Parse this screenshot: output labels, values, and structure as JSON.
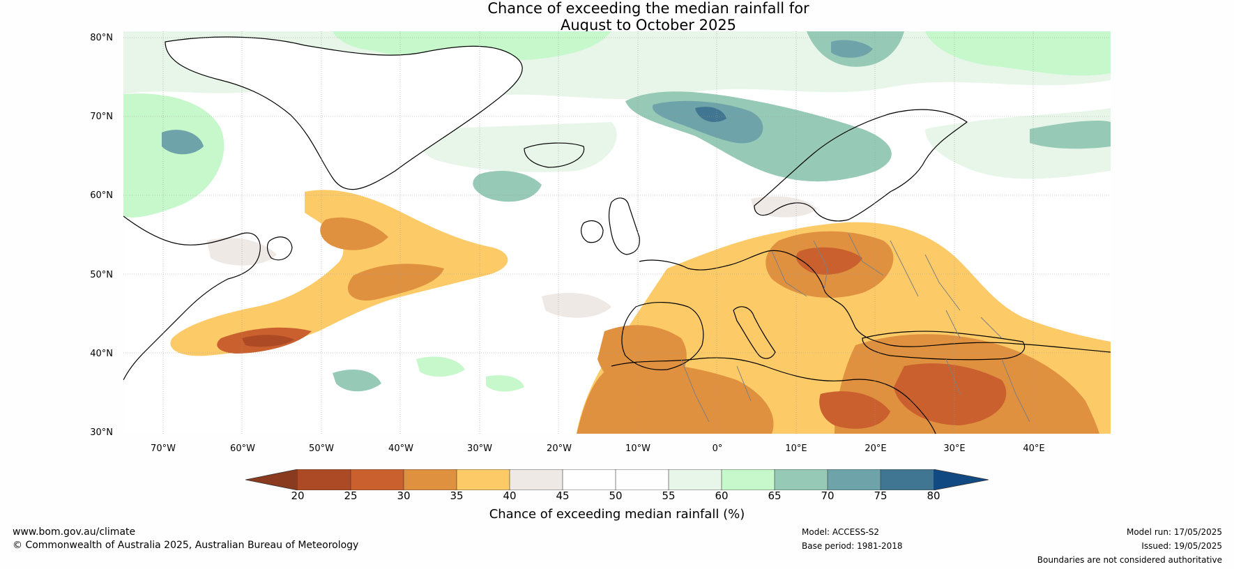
{
  "title": {
    "line1": "Chance of exceeding the median rainfall for",
    "line2": "August to October 2025"
  },
  "map": {
    "lat_labels": [
      "80°N",
      "70°N",
      "60°N",
      "50°N",
      "40°N",
      "30°N"
    ],
    "lon_labels": [
      "70°W",
      "60°W",
      "50°W",
      "40°W",
      "30°W",
      "20°W",
      "10°W",
      "0°",
      "10°E",
      "20°E",
      "30°E",
      "40°E"
    ],
    "colors": {
      "dry_extreme": "#8a3a1e",
      "lt25": "#ad4a26",
      "lt30": "#c9602e",
      "lt35": "#e0913f",
      "lt40": "#fdca68",
      "lt45": "#efe9e6",
      "lt50": "#ffffff",
      "lt55": "#fdfefd",
      "lt60": "#e8f6e9",
      "lt65": "#c7f8cb",
      "lt70": "#97cab6",
      "lt75": "#6ea3a9",
      "lt80": "#417692",
      "wet_extreme": "#114a83",
      "coast": "#000000",
      "borders": "#7f7f7f"
    }
  },
  "colorbar": {
    "ticks": [
      "20",
      "25",
      "30",
      "35",
      "40",
      "45",
      "50",
      "55",
      "60",
      "65",
      "70",
      "75",
      "80"
    ],
    "title": "Chance of exceeding median rainfall (%)"
  },
  "footer": {
    "website": "www.bom.gov.au/climate",
    "copyright": "© Commonwealth of Australia 2025, Australian Bureau of Meteorology",
    "model": "Model: ACCESS-S2",
    "base_period": "Base period: 1981-2018",
    "model_run": "Model run: 17/05/2025",
    "issued": "Issued: 19/05/2025",
    "disclaimer": "Boundaries are not considered authoritative"
  }
}
